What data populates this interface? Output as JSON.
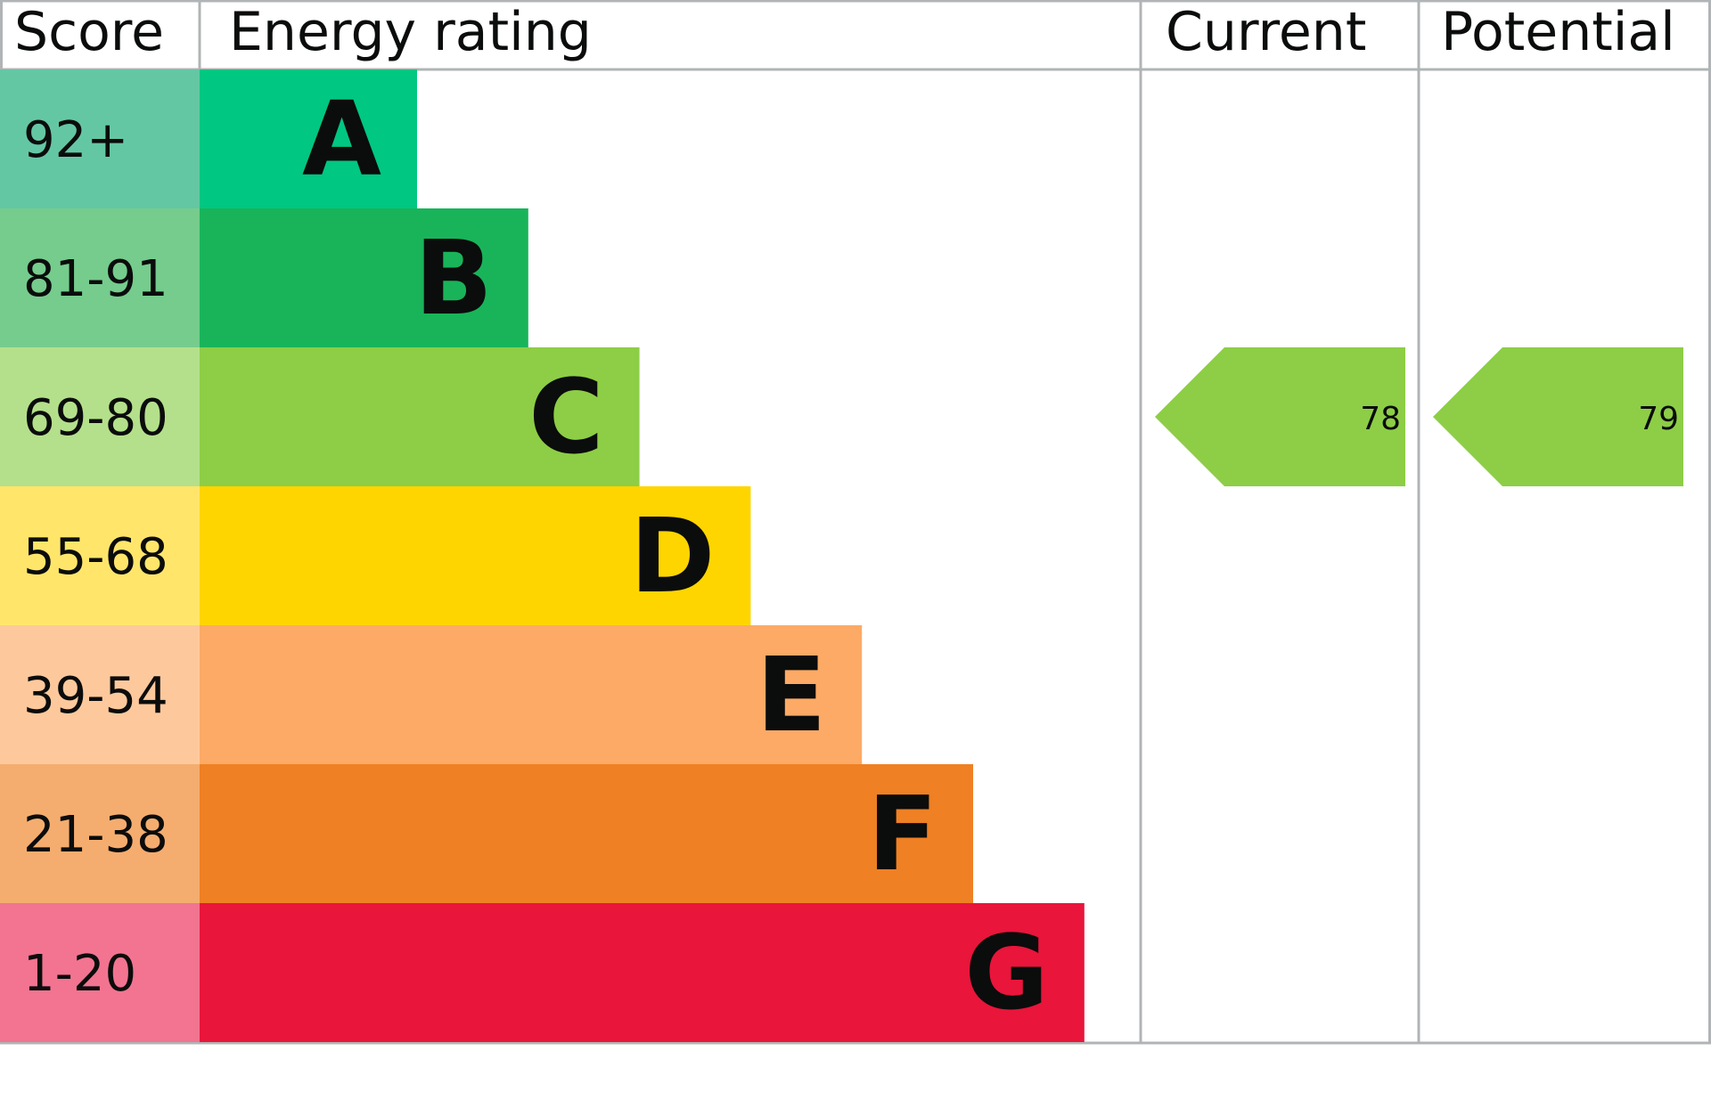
{
  "chart_data": {
    "type": "bar",
    "headers": {
      "score": "Score",
      "rating": "Energy rating",
      "current": "Current",
      "potential": "Potential"
    },
    "bands": [
      {
        "letter": "A",
        "range": "92+",
        "color": "#00c781",
        "score_color": "#64c7a4"
      },
      {
        "letter": "B",
        "range": "81-91",
        "color": "#19b459",
        "score_color": "#75cc8d"
      },
      {
        "letter": "C",
        "range": "69-80",
        "color": "#8dce46",
        "score_color": "#b4e08b"
      },
      {
        "letter": "D",
        "range": "55-68",
        "color": "#ffd500",
        "score_color": "#ffe66a"
      },
      {
        "letter": "E",
        "range": "39-54",
        "color": "#fcaa65",
        "score_color": "#fdc99c"
      },
      {
        "letter": "F",
        "range": "21-38",
        "color": "#ef8023",
        "score_color": "#f4ad6f"
      },
      {
        "letter": "G",
        "range": "1-20",
        "color": "#e9153b",
        "score_color": "#f27490"
      }
    ],
    "current": {
      "value": "78",
      "band": "C"
    },
    "potential": {
      "value": "79",
      "band": "C"
    },
    "border_color": "#b1b4b6"
  }
}
